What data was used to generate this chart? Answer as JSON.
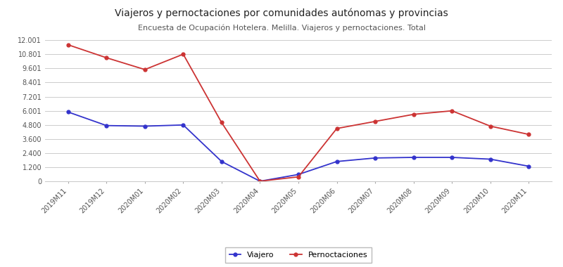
{
  "title": "Viajeros y pernoctaciones por comunidades autónomas y provincias",
  "subtitle": "Encuesta de Ocupación Hotelera. Melilla. Viajeros y pernoctaciones. Total",
  "x_labels": [
    "2019M11",
    "2019M12",
    "2020M01",
    "2020M02",
    "2020M03",
    "2020M04",
    "2020M05",
    "2020M06",
    "2020M07",
    "2020M08",
    "2020M09",
    "2020M10",
    "2020M11"
  ],
  "viajero": [
    5900,
    4750,
    4700,
    4800,
    1700,
    30,
    600,
    1700,
    2000,
    2050,
    2050,
    1900,
    1300
  ],
  "pernoctaciones": [
    11600,
    10500,
    9500,
    10800,
    5000,
    30,
    400,
    4500,
    5100,
    5700,
    6000,
    4700,
    4000
  ],
  "ylim": [
    0,
    12001
  ],
  "yticks": [
    0,
    1200,
    2400,
    3600,
    4800,
    6001,
    7201,
    8401,
    9601,
    10801,
    12001
  ],
  "ytick_labels": [
    "0",
    "1.200",
    "2.400",
    "3.600",
    "4.800",
    "6.001",
    "7.201",
    "8.401",
    "9.601",
    "10.801",
    "12.001"
  ],
  "line_color_viajero": "#3333cc",
  "line_color_pernoctaciones": "#cc3333",
  "marker": "o",
  "marker_size": 3.5,
  "legend_viajero": "Viajero",
  "legend_pernoctaciones": "Pernoctaciones",
  "bg_color": "#ffffff",
  "grid_color": "#cccccc",
  "title_fontsize": 10,
  "subtitle_fontsize": 8,
  "tick_fontsize": 7
}
